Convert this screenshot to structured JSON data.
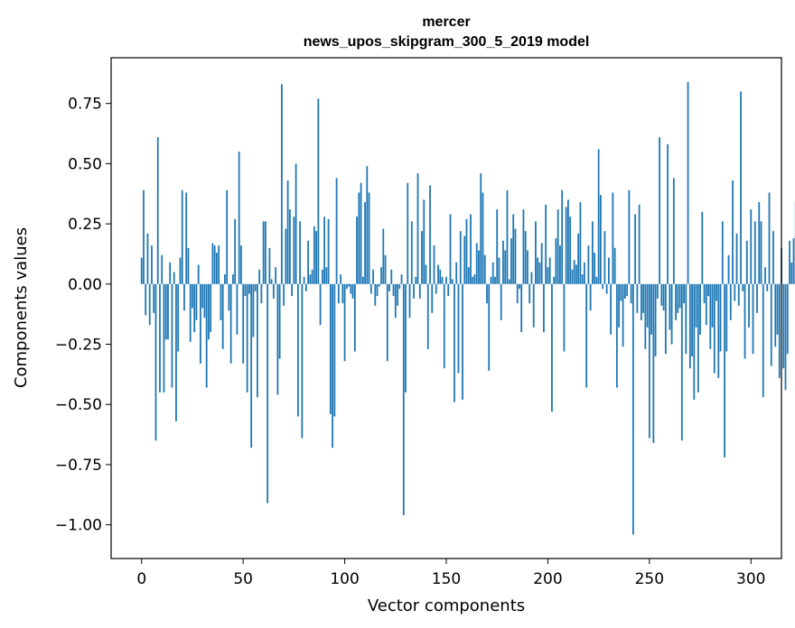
{
  "chart_data": {
    "type": "bar",
    "title": "mercer",
    "subtitle": "news_upos_skipgram_300_5_2019 model",
    "xlabel": "Vector components",
    "ylabel": "Components values",
    "xlim": [
      -15,
      315
    ],
    "ylim": [
      -1.14,
      0.94
    ],
    "grid": false,
    "bar_color": "#1f77b4",
    "x_ticks": [
      {
        "value": 0,
        "label": "0"
      },
      {
        "value": 50,
        "label": "50"
      },
      {
        "value": 100,
        "label": "100"
      },
      {
        "value": 150,
        "label": "150"
      },
      {
        "value": 200,
        "label": "200"
      },
      {
        "value": 250,
        "label": "250"
      },
      {
        "value": 300,
        "label": "300"
      }
    ],
    "y_ticks": [
      {
        "value": 0.75,
        "label": "0.75"
      },
      {
        "value": 0.5,
        "label": "0.50"
      },
      {
        "value": 0.25,
        "label": "0.25"
      },
      {
        "value": 0.0,
        "label": "0.00"
      },
      {
        "value": -0.25,
        "label": "−0.25"
      },
      {
        "value": -0.5,
        "label": "−0.50"
      },
      {
        "value": -0.75,
        "label": "−0.75"
      },
      {
        "value": -1.0,
        "label": "−1.00"
      }
    ],
    "values": [
      0.11,
      0.39,
      -0.13,
      0.21,
      -0.17,
      0.16,
      -0.12,
      -0.65,
      0.61,
      -0.45,
      0.12,
      -0.45,
      -0.23,
      -0.23,
      0.09,
      -0.43,
      0.05,
      -0.57,
      -0.28,
      0.11,
      0.39,
      -0.11,
      0.38,
      0.15,
      -0.24,
      -0.1,
      -0.2,
      -0.15,
      0.08,
      -0.33,
      -0.1,
      -0.14,
      -0.43,
      -0.23,
      -0.2,
      0.17,
      0.16,
      0.13,
      0.16,
      -0.15,
      -0.27,
      0.04,
      0.39,
      -0.11,
      -0.33,
      0.04,
      0.27,
      -0.21,
      0.55,
      0.16,
      -0.33,
      -0.05,
      -0.45,
      -0.04,
      -0.68,
      -0.22,
      -0.03,
      -0.47,
      0.06,
      -0.08,
      0.26,
      0.26,
      -0.91,
      0.15,
      0.02,
      -0.06,
      0.07,
      -0.46,
      -0.31,
      0.83,
      -0.09,
      0.23,
      0.43,
      0.31,
      -0.05,
      0.28,
      0.5,
      -0.55,
      0.26,
      -0.64,
      0.03,
      -0.03,
      0.18,
      0.04,
      0.06,
      0.24,
      0.22,
      0.77,
      -0.17,
      0.06,
      0.28,
      0.07,
      0.27,
      -0.54,
      -0.68,
      -0.55,
      0.44,
      -0.08,
      0.04,
      -0.08,
      -0.32,
      -0.02,
      -0.01,
      -0.04,
      -0.06,
      -0.28,
      0.28,
      0.38,
      0.42,
      0.03,
      0.34,
      0.49,
      0.38,
      -0.04,
      0.06,
      -0.09,
      -0.05,
      -0.01,
      0.07,
      0.23,
      0.12,
      -0.32,
      -0.03,
      0.06,
      -0.05,
      -0.14,
      -0.09,
      -0.02,
      0.04,
      -0.96,
      -0.45,
      0.42,
      -0.14,
      0.26,
      -0.06,
      0.03,
      0.46,
      -0.06,
      0.22,
      0.35,
      0.08,
      -0.27,
      0.41,
      -0.12,
      0.16,
      -0.04,
      0.08,
      0.06,
      0.03,
      -0.35,
      0.03,
      -0.05,
      0.29,
      0.02,
      -0.49,
      0.09,
      -0.37,
      0.22,
      -0.48,
      0.2,
      0.27,
      0.07,
      0.29,
      0.03,
      0.04,
      0.17,
      0.14,
      0.46,
      0.38,
      0.12,
      -0.08,
      -0.36,
      0.03,
      0.09,
      0.03,
      0.31,
      0.11,
      -0.15,
      0.18,
      0.14,
      0.39,
      0.02,
      0.19,
      0.29,
      0.23,
      -0.08,
      -0.02,
      -0.2,
      0.31,
      0.22,
      0.14,
      -0.08,
      0.05,
      -0.18,
      0.26,
      0.11,
      0.09,
      0.17,
      -0.2,
      0.33,
      0.07,
      0.11,
      -0.53,
      0.03,
      0.19,
      0.31,
      0.16,
      0.39,
      -0.28,
      0.32,
      0.35,
      0.28,
      0.06,
      0.1,
      0.08,
      0.21,
      0.34,
      0.04,
      0.09,
      -0.43,
      0.16,
      -0.11,
      0.26,
      0.13,
      0.03,
      0.56,
      0.37,
      -0.02,
      0.22,
      -0.04,
      0.11,
      -0.21,
      0.38,
      0.15,
      -0.43,
      -0.18,
      -0.07,
      -0.26,
      -0.06,
      -0.05,
      0.39,
      -0.08,
      -1.04,
      0.29,
      -0.12,
      0.33,
      -0.15,
      -0.12,
      -0.27,
      -0.18,
      -0.64,
      -0.21,
      -0.66,
      -0.3,
      -0.06,
      0.61,
      -0.09,
      -0.11,
      -0.29,
      0.58,
      -0.19,
      -0.25,
      0.44,
      -0.15,
      -0.12,
      -0.1,
      -0.65,
      -0.08,
      -0.29,
      0.84,
      -0.35,
      -0.3,
      -0.48,
      -0.18,
      -0.45,
      -0.21,
      0.3,
      -0.08,
      -0.17,
      -0.05,
      -0.27,
      -0.18,
      -0.37,
      -0.07,
      -0.39,
      -0.28,
      0.26,
      -0.72,
      -0.28,
      0.12,
      -0.15,
      0.43,
      -0.07,
      0.21,
      -0.09,
      0.8,
      -0.03,
      -0.31,
      0.18,
      -0.18,
      0.31,
      -0.29,
      0.26,
      -0.12,
      0.34,
      0.26,
      -0.47,
      0.07,
      -0.03,
      0.38,
      -0.34,
      0.22,
      -0.26,
      -0.21,
      -0.39,
      0.15,
      -0.35,
      -0.44,
      -0.29,
      0.18,
      0.09,
      0.19,
      0.34
    ]
  }
}
